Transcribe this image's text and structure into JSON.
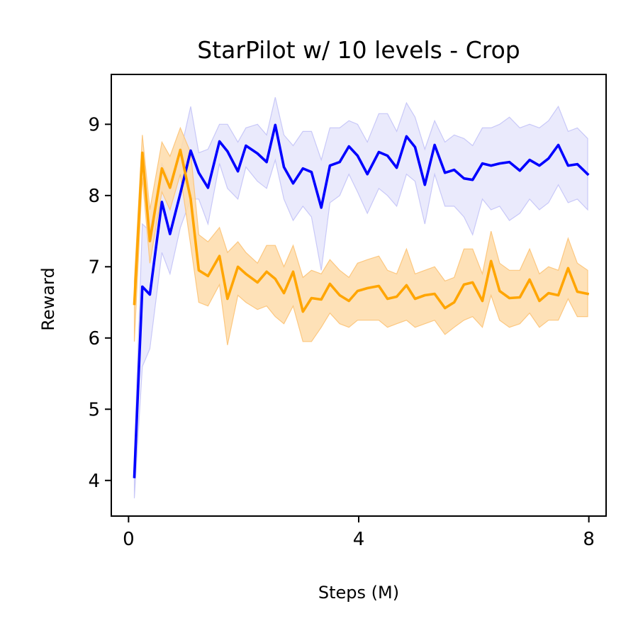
{
  "chart_data": {
    "type": "line",
    "title": "StarPilot w/ 10 levels - Crop",
    "xlabel": "Steps (M)",
    "ylabel": "Reward",
    "xlim": [
      -0.3,
      8.3
    ],
    "ylim": [
      3.5,
      9.7
    ],
    "xticks": [
      0,
      4,
      8
    ],
    "yticks": [
      4,
      5,
      6,
      7,
      8,
      9
    ],
    "grid": false,
    "series": [
      {
        "color": "#0000ff",
        "band_color": "#e6e6fc",
        "band_edge": "#c8c8f8",
        "x": [
          0.1,
          0.24,
          0.37,
          0.58,
          0.72,
          0.9,
          1.08,
          1.22,
          1.38,
          1.58,
          1.72,
          1.9,
          2.04,
          2.24,
          2.4,
          2.55,
          2.7,
          2.86,
          3.03,
          3.18,
          3.35,
          3.5,
          3.67,
          3.83,
          3.98,
          4.15,
          4.35,
          4.5,
          4.66,
          4.83,
          4.98,
          5.15,
          5.32,
          5.5,
          5.66,
          5.83,
          5.98,
          6.15,
          6.3,
          6.45,
          6.62,
          6.8,
          6.97,
          7.14,
          7.3,
          7.47,
          7.64,
          7.8,
          7.98
        ],
        "y": [
          4.05,
          6.72,
          6.61,
          7.91,
          7.46,
          8.03,
          8.63,
          8.32,
          8.11,
          8.76,
          8.62,
          8.34,
          8.7,
          8.59,
          8.47,
          8.99,
          8.4,
          8.17,
          8.38,
          8.33,
          7.83,
          8.42,
          8.47,
          8.69,
          8.56,
          8.3,
          8.61,
          8.56,
          8.39,
          8.83,
          8.68,
          8.15,
          8.71,
          8.32,
          8.36,
          8.24,
          8.22,
          8.45,
          8.42,
          8.45,
          8.47,
          8.35,
          8.5,
          8.42,
          8.52,
          8.71,
          8.42,
          8.44,
          8.3
        ],
        "upper": [
          4.35,
          7.6,
          7.5,
          8.45,
          8.2,
          8.6,
          9.25,
          8.6,
          8.65,
          9.0,
          9.0,
          8.75,
          8.95,
          9.0,
          8.85,
          9.38,
          8.85,
          8.7,
          8.9,
          8.9,
          8.5,
          8.95,
          8.95,
          9.05,
          9.0,
          8.75,
          9.15,
          9.15,
          8.9,
          9.3,
          9.1,
          8.65,
          9.05,
          8.75,
          8.85,
          8.8,
          8.7,
          8.95,
          8.95,
          9.0,
          9.1,
          8.95,
          9.0,
          8.95,
          9.05,
          9.25,
          8.9,
          8.95,
          8.8
        ],
        "lower": [
          3.75,
          5.6,
          5.85,
          7.2,
          6.9,
          7.55,
          7.95,
          7.95,
          7.6,
          8.45,
          8.1,
          7.95,
          8.4,
          8.2,
          8.1,
          8.5,
          7.95,
          7.65,
          7.85,
          7.7,
          6.95,
          7.9,
          8.0,
          8.3,
          8.05,
          7.75,
          8.1,
          8.0,
          7.85,
          8.3,
          8.2,
          7.6,
          8.3,
          7.85,
          7.85,
          7.7,
          7.45,
          7.95,
          7.8,
          7.85,
          7.65,
          7.75,
          7.95,
          7.8,
          7.9,
          8.15,
          7.9,
          7.95,
          7.8
        ]
      },
      {
        "color": "#ffa500",
        "band_color": "#fedcaa",
        "band_edge": "#fcc77f",
        "x": [
          0.1,
          0.24,
          0.37,
          0.58,
          0.72,
          0.9,
          1.08,
          1.22,
          1.38,
          1.58,
          1.72,
          1.9,
          2.04,
          2.24,
          2.4,
          2.55,
          2.7,
          2.86,
          3.03,
          3.18,
          3.35,
          3.5,
          3.67,
          3.83,
          3.98,
          4.15,
          4.35,
          4.5,
          4.66,
          4.83,
          4.98,
          5.15,
          5.32,
          5.5,
          5.66,
          5.83,
          5.98,
          6.15,
          6.3,
          6.45,
          6.62,
          6.8,
          6.97,
          7.14,
          7.3,
          7.47,
          7.64,
          7.8,
          7.98
        ],
        "y": [
          6.48,
          8.6,
          7.36,
          8.38,
          8.11,
          8.64,
          7.95,
          6.95,
          6.87,
          7.15,
          6.55,
          7.0,
          6.9,
          6.78,
          6.93,
          6.83,
          6.63,
          6.93,
          6.37,
          6.56,
          6.54,
          6.76,
          6.6,
          6.52,
          6.66,
          6.7,
          6.73,
          6.55,
          6.58,
          6.74,
          6.55,
          6.6,
          6.62,
          6.42,
          6.5,
          6.75,
          6.78,
          6.52,
          7.08,
          6.66,
          6.56,
          6.57,
          6.82,
          6.52,
          6.63,
          6.6,
          6.98,
          6.65,
          6.62
        ],
        "upper": [
          6.8,
          8.85,
          7.8,
          8.75,
          8.55,
          8.95,
          8.6,
          7.45,
          7.35,
          7.55,
          7.2,
          7.35,
          7.2,
          7.05,
          7.3,
          7.3,
          7.0,
          7.3,
          6.85,
          6.95,
          6.9,
          7.1,
          6.95,
          6.85,
          7.05,
          7.1,
          7.15,
          6.95,
          6.9,
          7.25,
          6.9,
          6.95,
          7.0,
          6.8,
          6.85,
          7.25,
          7.25,
          6.9,
          7.5,
          7.05,
          6.95,
          6.95,
          7.25,
          6.9,
          7.0,
          6.95,
          7.4,
          7.05,
          6.95
        ],
        "lower": [
          5.95,
          8.25,
          7.05,
          8.05,
          7.8,
          8.3,
          7.3,
          6.5,
          6.45,
          6.75,
          5.9,
          6.6,
          6.5,
          6.4,
          6.45,
          6.3,
          6.2,
          6.45,
          5.95,
          5.95,
          6.15,
          6.35,
          6.2,
          6.15,
          6.25,
          6.25,
          6.25,
          6.15,
          6.2,
          6.25,
          6.15,
          6.2,
          6.25,
          6.05,
          6.15,
          6.25,
          6.3,
          6.15,
          6.6,
          6.25,
          6.15,
          6.2,
          6.35,
          6.15,
          6.25,
          6.25,
          6.55,
          6.3,
          6.3
        ]
      }
    ]
  }
}
